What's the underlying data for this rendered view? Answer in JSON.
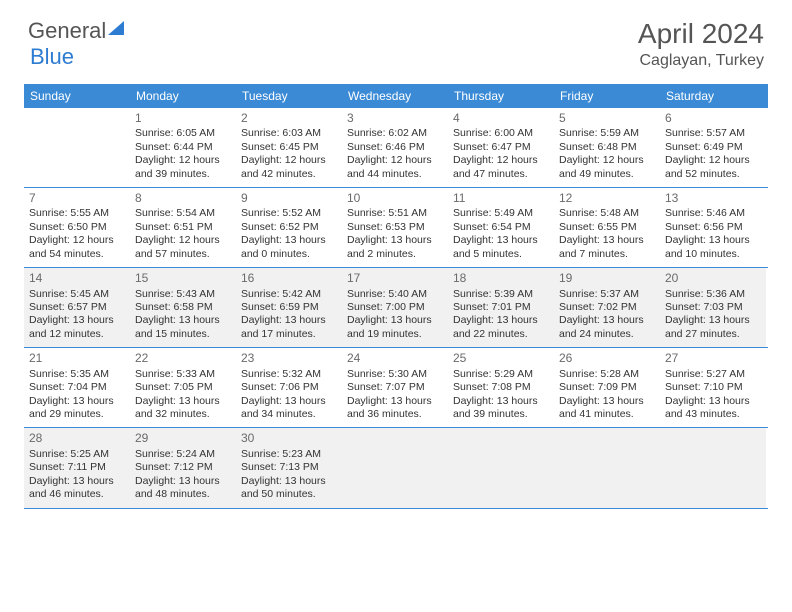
{
  "logo": {
    "text1": "General",
    "text2": "Blue"
  },
  "header": {
    "month": "April 2024",
    "location": "Caglayan, Turkey"
  },
  "colors": {
    "accent": "#3a8ad6",
    "shade": "#f1f1f1",
    "text": "#333333"
  },
  "day_headers": [
    "Sunday",
    "Monday",
    "Tuesday",
    "Wednesday",
    "Thursday",
    "Friday",
    "Saturday"
  ],
  "weeks": [
    {
      "shaded": false,
      "cells": [
        {
          "empty": true
        },
        {
          "n": "1",
          "sr": "Sunrise: 6:05 AM",
          "ss": "Sunset: 6:44 PM",
          "d1": "Daylight: 12 hours",
          "d2": "and 39 minutes."
        },
        {
          "n": "2",
          "sr": "Sunrise: 6:03 AM",
          "ss": "Sunset: 6:45 PM",
          "d1": "Daylight: 12 hours",
          "d2": "and 42 minutes."
        },
        {
          "n": "3",
          "sr": "Sunrise: 6:02 AM",
          "ss": "Sunset: 6:46 PM",
          "d1": "Daylight: 12 hours",
          "d2": "and 44 minutes."
        },
        {
          "n": "4",
          "sr": "Sunrise: 6:00 AM",
          "ss": "Sunset: 6:47 PM",
          "d1": "Daylight: 12 hours",
          "d2": "and 47 minutes."
        },
        {
          "n": "5",
          "sr": "Sunrise: 5:59 AM",
          "ss": "Sunset: 6:48 PM",
          "d1": "Daylight: 12 hours",
          "d2": "and 49 minutes."
        },
        {
          "n": "6",
          "sr": "Sunrise: 5:57 AM",
          "ss": "Sunset: 6:49 PM",
          "d1": "Daylight: 12 hours",
          "d2": "and 52 minutes."
        }
      ]
    },
    {
      "shaded": false,
      "cells": [
        {
          "n": "7",
          "sr": "Sunrise: 5:55 AM",
          "ss": "Sunset: 6:50 PM",
          "d1": "Daylight: 12 hours",
          "d2": "and 54 minutes."
        },
        {
          "n": "8",
          "sr": "Sunrise: 5:54 AM",
          "ss": "Sunset: 6:51 PM",
          "d1": "Daylight: 12 hours",
          "d2": "and 57 minutes."
        },
        {
          "n": "9",
          "sr": "Sunrise: 5:52 AM",
          "ss": "Sunset: 6:52 PM",
          "d1": "Daylight: 13 hours",
          "d2": "and 0 minutes."
        },
        {
          "n": "10",
          "sr": "Sunrise: 5:51 AM",
          "ss": "Sunset: 6:53 PM",
          "d1": "Daylight: 13 hours",
          "d2": "and 2 minutes."
        },
        {
          "n": "11",
          "sr": "Sunrise: 5:49 AM",
          "ss": "Sunset: 6:54 PM",
          "d1": "Daylight: 13 hours",
          "d2": "and 5 minutes."
        },
        {
          "n": "12",
          "sr": "Sunrise: 5:48 AM",
          "ss": "Sunset: 6:55 PM",
          "d1": "Daylight: 13 hours",
          "d2": "and 7 minutes."
        },
        {
          "n": "13",
          "sr": "Sunrise: 5:46 AM",
          "ss": "Sunset: 6:56 PM",
          "d1": "Daylight: 13 hours",
          "d2": "and 10 minutes."
        }
      ]
    },
    {
      "shaded": true,
      "cells": [
        {
          "n": "14",
          "sr": "Sunrise: 5:45 AM",
          "ss": "Sunset: 6:57 PM",
          "d1": "Daylight: 13 hours",
          "d2": "and 12 minutes."
        },
        {
          "n": "15",
          "sr": "Sunrise: 5:43 AM",
          "ss": "Sunset: 6:58 PM",
          "d1": "Daylight: 13 hours",
          "d2": "and 15 minutes."
        },
        {
          "n": "16",
          "sr": "Sunrise: 5:42 AM",
          "ss": "Sunset: 6:59 PM",
          "d1": "Daylight: 13 hours",
          "d2": "and 17 minutes."
        },
        {
          "n": "17",
          "sr": "Sunrise: 5:40 AM",
          "ss": "Sunset: 7:00 PM",
          "d1": "Daylight: 13 hours",
          "d2": "and 19 minutes."
        },
        {
          "n": "18",
          "sr": "Sunrise: 5:39 AM",
          "ss": "Sunset: 7:01 PM",
          "d1": "Daylight: 13 hours",
          "d2": "and 22 minutes."
        },
        {
          "n": "19",
          "sr": "Sunrise: 5:37 AM",
          "ss": "Sunset: 7:02 PM",
          "d1": "Daylight: 13 hours",
          "d2": "and 24 minutes."
        },
        {
          "n": "20",
          "sr": "Sunrise: 5:36 AM",
          "ss": "Sunset: 7:03 PM",
          "d1": "Daylight: 13 hours",
          "d2": "and 27 minutes."
        }
      ]
    },
    {
      "shaded": false,
      "cells": [
        {
          "n": "21",
          "sr": "Sunrise: 5:35 AM",
          "ss": "Sunset: 7:04 PM",
          "d1": "Daylight: 13 hours",
          "d2": "and 29 minutes."
        },
        {
          "n": "22",
          "sr": "Sunrise: 5:33 AM",
          "ss": "Sunset: 7:05 PM",
          "d1": "Daylight: 13 hours",
          "d2": "and 32 minutes."
        },
        {
          "n": "23",
          "sr": "Sunrise: 5:32 AM",
          "ss": "Sunset: 7:06 PM",
          "d1": "Daylight: 13 hours",
          "d2": "and 34 minutes."
        },
        {
          "n": "24",
          "sr": "Sunrise: 5:30 AM",
          "ss": "Sunset: 7:07 PM",
          "d1": "Daylight: 13 hours",
          "d2": "and 36 minutes."
        },
        {
          "n": "25",
          "sr": "Sunrise: 5:29 AM",
          "ss": "Sunset: 7:08 PM",
          "d1": "Daylight: 13 hours",
          "d2": "and 39 minutes."
        },
        {
          "n": "26",
          "sr": "Sunrise: 5:28 AM",
          "ss": "Sunset: 7:09 PM",
          "d1": "Daylight: 13 hours",
          "d2": "and 41 minutes."
        },
        {
          "n": "27",
          "sr": "Sunrise: 5:27 AM",
          "ss": "Sunset: 7:10 PM",
          "d1": "Daylight: 13 hours",
          "d2": "and 43 minutes."
        }
      ]
    },
    {
      "shaded": true,
      "cells": [
        {
          "n": "28",
          "sr": "Sunrise: 5:25 AM",
          "ss": "Sunset: 7:11 PM",
          "d1": "Daylight: 13 hours",
          "d2": "and 46 minutes."
        },
        {
          "n": "29",
          "sr": "Sunrise: 5:24 AM",
          "ss": "Sunset: 7:12 PM",
          "d1": "Daylight: 13 hours",
          "d2": "and 48 minutes."
        },
        {
          "n": "30",
          "sr": "Sunrise: 5:23 AM",
          "ss": "Sunset: 7:13 PM",
          "d1": "Daylight: 13 hours",
          "d2": "and 50 minutes."
        },
        {
          "empty": true
        },
        {
          "empty": true
        },
        {
          "empty": true
        },
        {
          "empty": true
        }
      ]
    }
  ]
}
